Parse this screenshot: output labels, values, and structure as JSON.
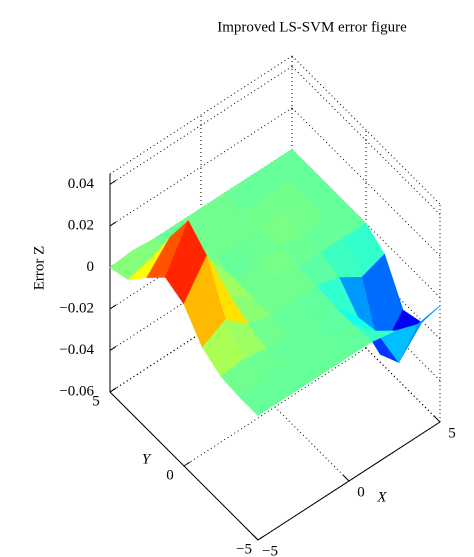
{
  "chart_data": {
    "type": "surface",
    "title": "Improved LS-SVM error figure",
    "xlabel": "X",
    "ylabel": "Y",
    "zlabel": "Error Z",
    "x": [
      -5,
      -3.75,
      -2.5,
      -1.25,
      0,
      1.25,
      2.5,
      3.75,
      5
    ],
    "y": [
      -5,
      -3.75,
      -2.5,
      -1.25,
      0,
      1.25,
      2.5,
      3.75,
      5
    ],
    "z": [
      [
        0,
        0,
        0,
        0,
        0,
        0,
        -0.002,
        -0.006,
        -0.004
      ],
      [
        0,
        0,
        0,
        0,
        0,
        -0.001,
        -0.011,
        -0.033,
        -0.021
      ],
      [
        0.001,
        0.002,
        0,
        0,
        0,
        -0.001,
        -0.013,
        -0.038,
        -0.024
      ],
      [
        0.006,
        0.012,
        0.003,
        0,
        0,
        0,
        -0.003,
        -0.01,
        -0.006
      ],
      [
        0.018,
        0.034,
        0.008,
        0,
        0.003,
        0,
        0,
        0,
        0
      ],
      [
        0.022,
        0.042,
        0.01,
        0,
        0,
        0.002,
        0,
        0,
        0
      ],
      [
        0.013,
        0.025,
        0.006,
        0,
        0,
        0,
        0.004,
        0,
        0
      ],
      [
        0.003,
        0.006,
        0.001,
        0,
        0.003,
        0,
        0,
        0,
        0
      ],
      [
        0,
        0.001,
        0,
        0,
        0,
        0,
        0,
        0,
        0
      ]
    ],
    "xlim": [
      -5,
      5
    ],
    "xticks": [
      {
        "value": -5,
        "label": "−5"
      },
      0,
      5
    ],
    "ylim": [
      -5,
      5
    ],
    "yticks": [
      {
        "value": -5,
        "label": "−5"
      },
      0,
      5
    ],
    "zlim": [
      -0.06,
      0.045
    ],
    "zticks": [
      {
        "value": -0.06,
        "label": "−0.06"
      },
      {
        "value": -0.04,
        "label": "−0.04"
      },
      {
        "value": -0.02,
        "label": "−0.02"
      },
      0,
      0.02,
      0.04
    ],
    "grid": true,
    "colormap": "jet"
  }
}
